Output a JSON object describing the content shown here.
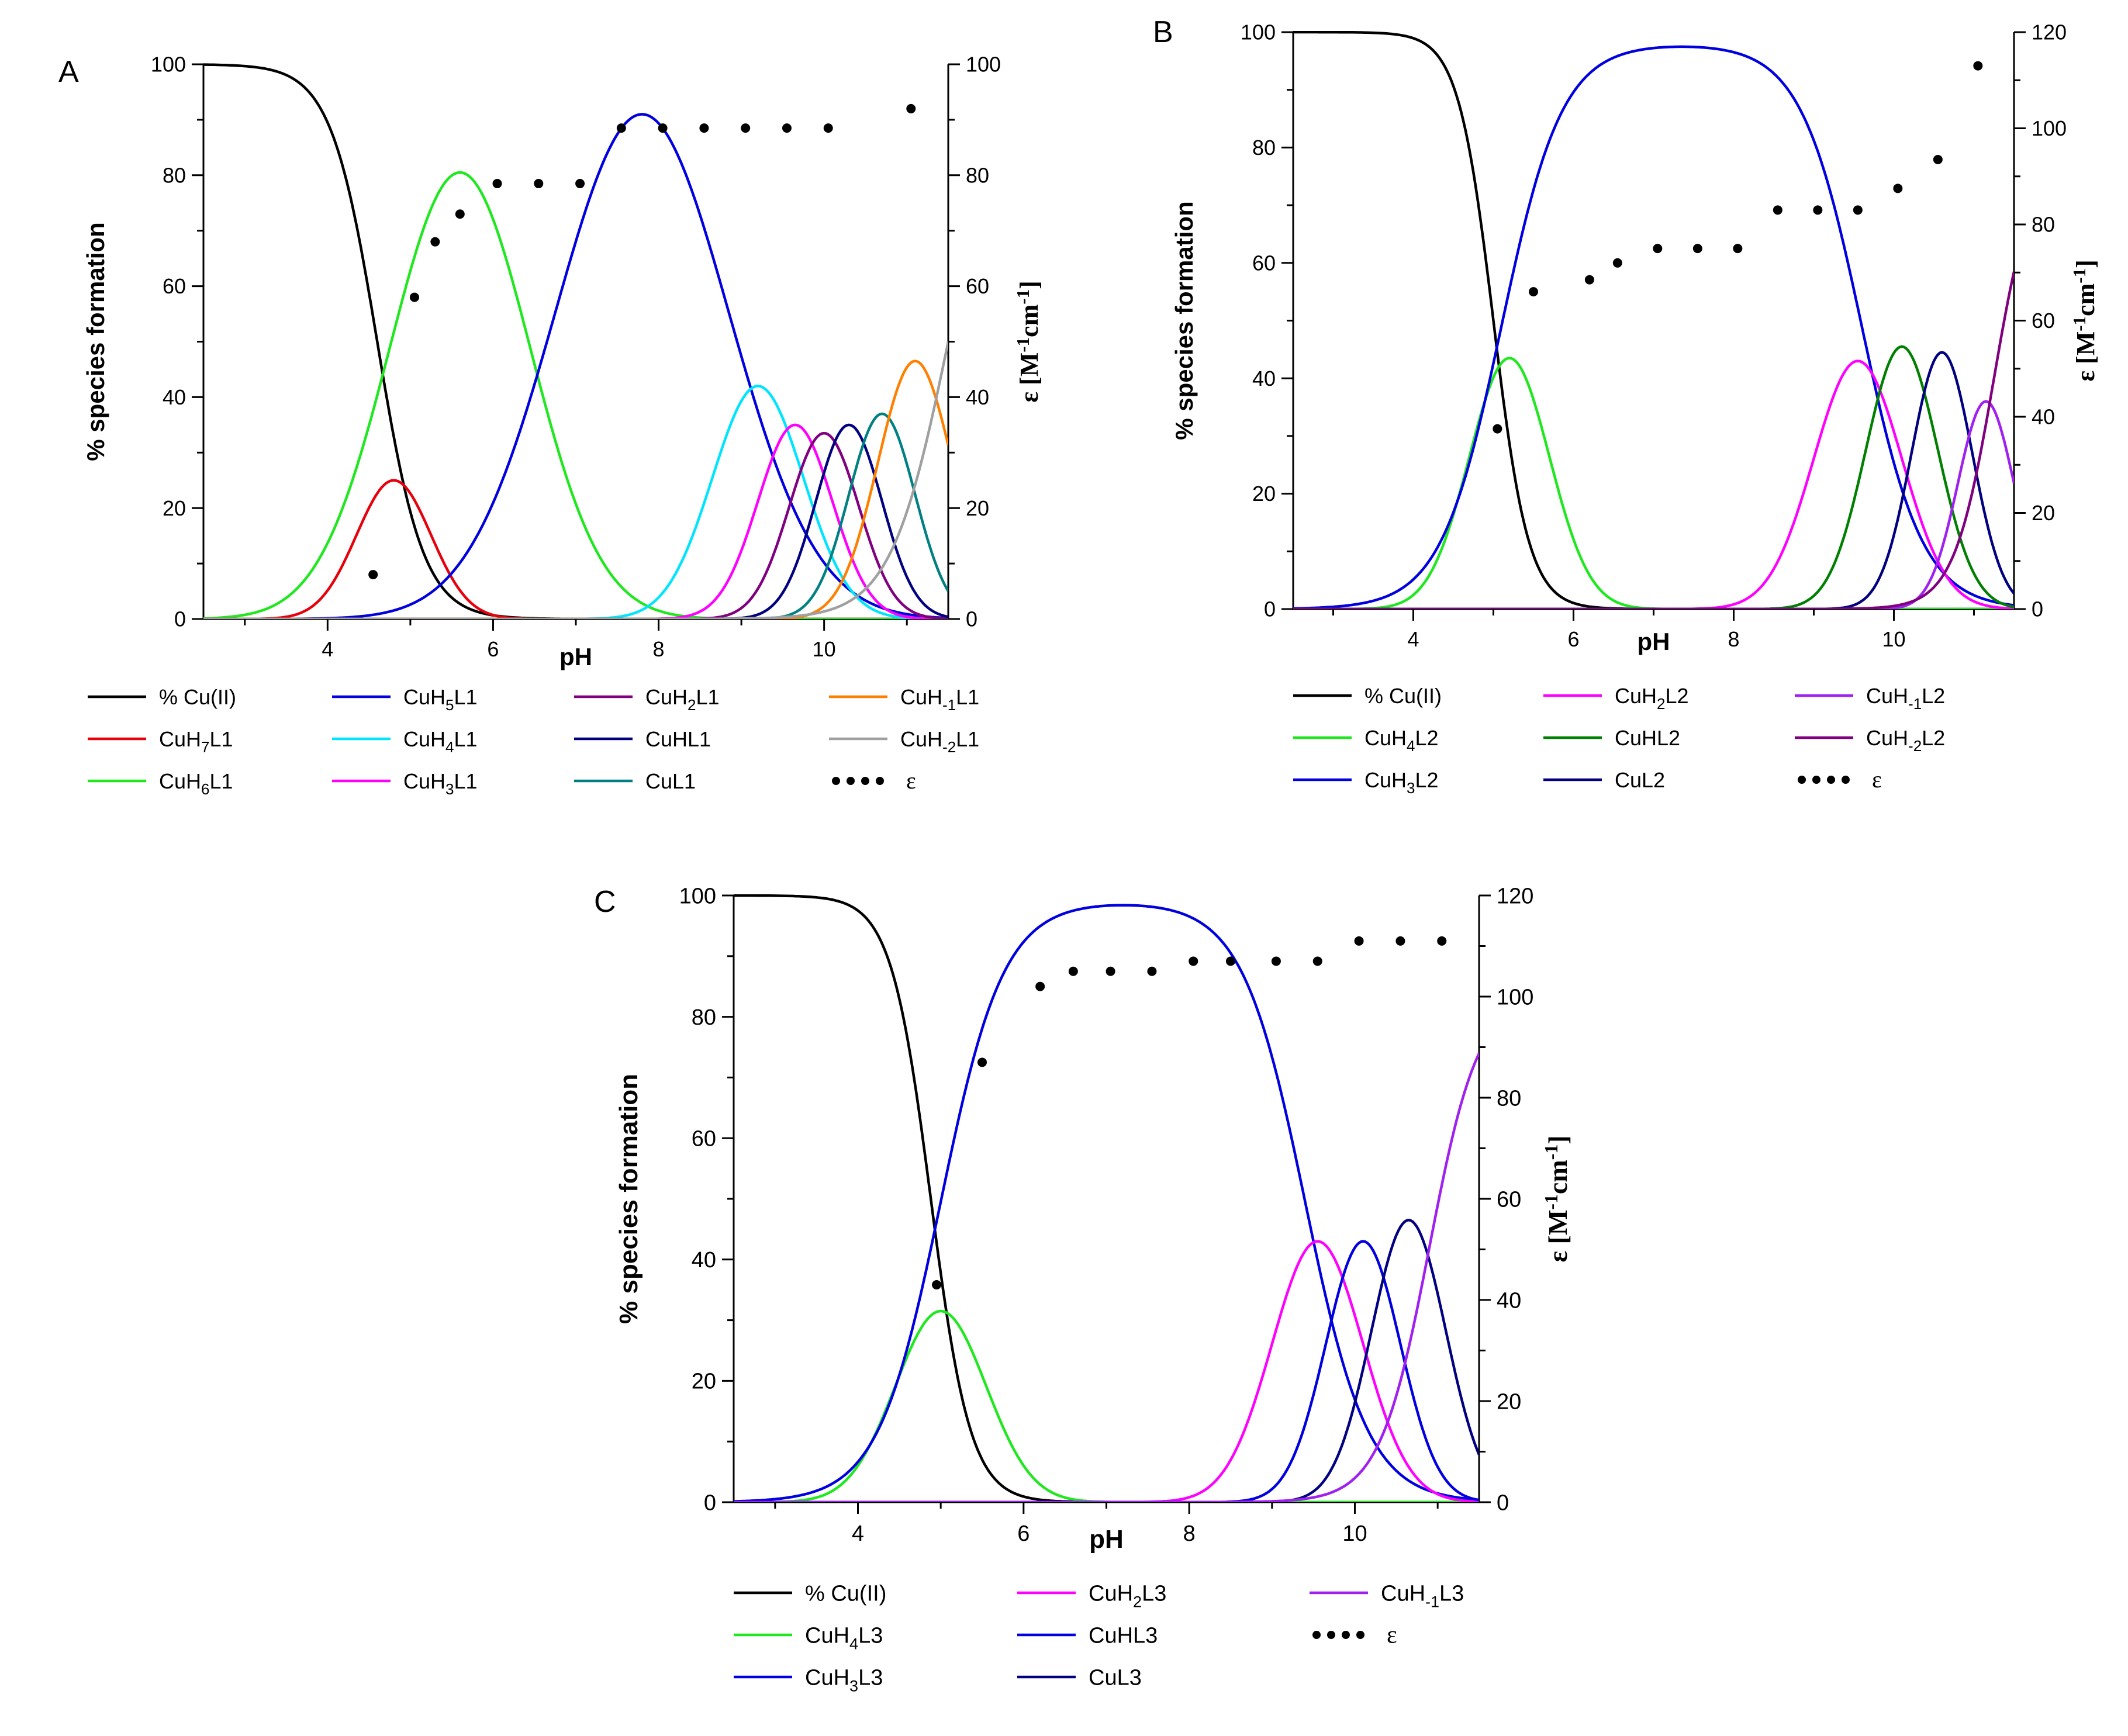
{
  "chart_data": [
    {
      "panel_label": "A",
      "type": "line",
      "xlabel": "pH",
      "ylabel": "% species formation",
      "y2label": "ε [M⁻¹cm⁻¹]",
      "xlim": [
        2.5,
        11.5
      ],
      "ylim": [
        0,
        100
      ],
      "y2lim": [
        0,
        100
      ],
      "x_ticks": [
        4,
        6,
        8,
        10
      ],
      "y_ticks": [
        0,
        20,
        40,
        60,
        80,
        100
      ],
      "y2_ticks": [
        0,
        20,
        40,
        60,
        80,
        100
      ],
      "species": [
        {
          "name": "% Cu(II)",
          "color": "#000000",
          "kind": "cu",
          "mid": 4.6,
          "width": 0.28,
          "peak": 100
        },
        {
          "name": "CuH7L1",
          "color": "#e8000b",
          "kind": "bell",
          "center": 4.8,
          "peak": 25,
          "sigma": 0.45
        },
        {
          "name": "CuH6L1",
          "color": "#1fe81f",
          "kind": "bell",
          "center": 5.6,
          "peak": 80.5,
          "sigma": 0.85
        },
        {
          "name": "CuH5L1",
          "color": "#0000e0",
          "kind": "bell",
          "center": 7.8,
          "peak": 91,
          "sigma": 1.05
        },
        {
          "name": "CuH4L1",
          "color": "#00e5ff",
          "kind": "bell",
          "center": 9.2,
          "peak": 42,
          "sigma": 0.55
        },
        {
          "name": "CuH3L1",
          "color": "#ff00ff",
          "kind": "bell",
          "center": 9.65,
          "peak": 35,
          "sigma": 0.45
        },
        {
          "name": "CuH2L1",
          "color": "#800080",
          "kind": "bell",
          "center": 10.0,
          "peak": 33.5,
          "sigma": 0.42
        },
        {
          "name": "CuHL1",
          "color": "#000080",
          "kind": "bell",
          "center": 10.3,
          "peak": 35,
          "sigma": 0.4
        },
        {
          "name": "CuL1",
          "color": "#008080",
          "kind": "bell",
          "center": 10.7,
          "peak": 37,
          "sigma": 0.4
        },
        {
          "name": "CuH-1L1",
          "color": "#ff8000",
          "kind": "bell",
          "center": 11.1,
          "peak": 46.5,
          "sigma": 0.45
        },
        {
          "name": "CuH-2L1",
          "color": "#a0a0a0",
          "kind": "rise",
          "mid": 11.5,
          "width": 0.35,
          "peak": 100
        }
      ],
      "epsilon": {
        "name": "ε",
        "x": [
          4.55,
          5.05,
          5.3,
          5.6,
          6.05,
          6.55,
          7.05,
          7.55,
          8.05,
          8.55,
          9.05,
          9.55,
          10.05,
          11.05
        ],
        "y": [
          8,
          58,
          68,
          73,
          78.5,
          78.5,
          78.5,
          88.5,
          88.5,
          88.5,
          88.5,
          88.5,
          88.5,
          92
        ]
      },
      "legend": [
        [
          "% Cu(II)",
          "CuH5L1",
          "CuH2L1",
          "CuH-1L1"
        ],
        [
          "CuH7L1",
          "CuH4L1",
          "CuHL1",
          "CuH-2L1"
        ],
        [
          "CuH6L1",
          "CuH3L1",
          "CuL1",
          "ε"
        ]
      ]
    },
    {
      "panel_label": "B",
      "type": "line",
      "xlabel": "pH",
      "ylabel": "% species formation",
      "y2label": "ε [M⁻¹cm⁻¹]",
      "xlim": [
        2.5,
        11.5
      ],
      "ylim": [
        0,
        100
      ],
      "y2lim": [
        0,
        120
      ],
      "x_ticks": [
        4,
        6,
        8,
        10
      ],
      "y_ticks": [
        0,
        20,
        40,
        60,
        80,
        100
      ],
      "y2_ticks": [
        0,
        20,
        40,
        60,
        80,
        100,
        120
      ],
      "species": [
        {
          "name": "% Cu(II)",
          "color": "#000000",
          "kind": "cu",
          "mid": 5.0,
          "width": 0.22,
          "peak": 100
        },
        {
          "name": "CuH4L2",
          "color": "#1fe81f",
          "kind": "bell",
          "center": 5.2,
          "peak": 43.5,
          "sigma": 0.5
        },
        {
          "name": "CuH3L2",
          "color": "#0000e0",
          "kind": "plateau",
          "center": 7.35,
          "peak": 98,
          "halfwidth": 2.25,
          "w": 0.38
        },
        {
          "name": "CuH2L2",
          "color": "#ff00ff",
          "kind": "bell",
          "center": 9.55,
          "peak": 43,
          "sigma": 0.55
        },
        {
          "name": "CuHL2",
          "color": "#008000",
          "kind": "bell",
          "center": 10.1,
          "peak": 45.5,
          "sigma": 0.45
        },
        {
          "name": "CuL2",
          "color": "#000080",
          "kind": "bell",
          "center": 10.6,
          "peak": 44.5,
          "sigma": 0.38
        },
        {
          "name": "CuH-1L2",
          "color": "#a020f0",
          "kind": "bell",
          "center": 11.15,
          "peak": 36,
          "sigma": 0.35
        },
        {
          "name": "CuH-2L2",
          "color": "#800080",
          "kind": "rise",
          "mid": 11.25,
          "width": 0.25,
          "peak": 80
        }
      ],
      "epsilon": {
        "name": "ε",
        "x": [
          5.05,
          5.5,
          6.2,
          6.55,
          7.05,
          7.55,
          8.05,
          8.55,
          9.05,
          9.55,
          10.05,
          10.55,
          11.05
        ],
        "y": [
          37.5,
          66,
          68.5,
          72,
          75,
          75,
          75,
          83,
          83,
          83,
          87.5,
          93.5,
          113
        ]
      },
      "legend": [
        [
          "% Cu(II)",
          "CuH2L2",
          "CuH-1L2"
        ],
        [
          "CuH4L2",
          "CuHL2",
          "CuH-2L2"
        ],
        [
          "CuH3L2",
          "CuL2",
          "ε"
        ]
      ]
    },
    {
      "panel_label": "C",
      "type": "line",
      "xlabel": "pH",
      "ylabel": "% species formation",
      "y2label": "ε [M⁻¹cm⁻¹]",
      "xlim": [
        2.5,
        11.5
      ],
      "ylim": [
        0,
        100
      ],
      "y2lim": [
        0,
        120
      ],
      "x_ticks": [
        4,
        6,
        8,
        10
      ],
      "y_ticks": [
        0,
        20,
        40,
        60,
        80,
        100
      ],
      "y2_ticks": [
        0,
        20,
        40,
        60,
        80,
        100,
        120
      ],
      "species": [
        {
          "name": "% Cu(II)",
          "color": "#000000",
          "kind": "cu",
          "mid": 4.88,
          "width": 0.24,
          "peak": 100
        },
        {
          "name": "CuH4L3",
          "color": "#1fe81f",
          "kind": "bell",
          "center": 5.0,
          "peak": 31.5,
          "sigma": 0.55
        },
        {
          "name": "CuH3L3",
          "color": "#0000e0",
          "kind": "plateau",
          "center": 7.2,
          "peak": 99,
          "halfwidth": 2.2,
          "w": 0.38
        },
        {
          "name": "CuH2L3",
          "color": "#ff00ff",
          "kind": "bell",
          "center": 9.55,
          "peak": 43,
          "sigma": 0.55
        },
        {
          "name": "CuHL3",
          "color": "#0000e0",
          "kind": "bell",
          "center": 10.1,
          "peak": 43,
          "sigma": 0.45
        },
        {
          "name": "CuL3",
          "color": "#000080",
          "kind": "bell",
          "center": 10.65,
          "peak": 46.5,
          "sigma": 0.45
        },
        {
          "name": "CuH-1L3",
          "color": "#a020f0",
          "kind": "rise",
          "mid": 10.9,
          "width": 0.3,
          "peak": 84
        }
      ],
      "epsilon": {
        "name": "ε",
        "x": [
          4.95,
          5.5,
          6.2,
          6.6,
          7.05,
          7.55,
          8.05,
          8.5,
          9.05,
          9.55,
          10.05,
          10.55,
          11.05
        ],
        "y": [
          43,
          87,
          102,
          105,
          105,
          105,
          107,
          107,
          107,
          107,
          111,
          111,
          111
        ]
      },
      "legend": [
        [
          "% Cu(II)",
          "CuH2L3",
          "CuH-1L3"
        ],
        [
          "CuH4L3",
          "CuHL3",
          "ε"
        ],
        [
          "CuH3L3",
          "CuL3"
        ]
      ]
    }
  ]
}
